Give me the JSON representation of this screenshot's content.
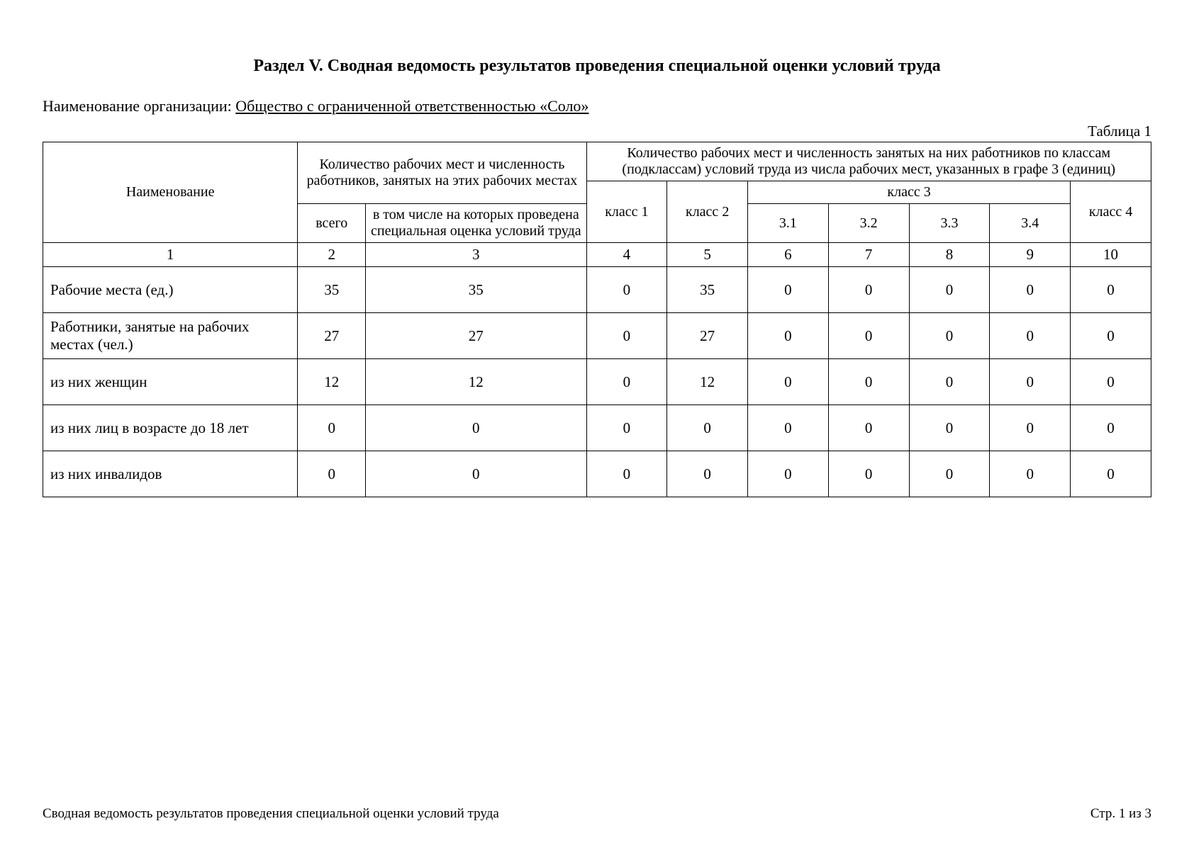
{
  "title": "Раздел V. Сводная ведомость результатов проведения специальной оценки условий труда",
  "org_label": "Наименование организации:",
  "org_name": " Общество с ограниченной ответственностью «Соло» ",
  "table_label": "Таблица 1",
  "headers": {
    "name": "Наименование",
    "count_header": "Количество рабочих мест и численность работников, занятых на этих рабочих местах",
    "classes_header": "Количество рабочих мест и численность занятых на них работников по классам (подклассам) условий труда из числа рабочих мест, указанных в графе 3 (единиц)",
    "total": "всего",
    "assessed": "в том числе на которых проведена специальная оценка условий труда",
    "class1": "класс 1",
    "class2": "класс 2",
    "class3": "класс 3",
    "class4": "класс 4",
    "sub31": "3.1",
    "sub32": "3.2",
    "sub33": "3.3",
    "sub34": "3.4"
  },
  "column_numbers": [
    "1",
    "2",
    "3",
    "4",
    "5",
    "6",
    "7",
    "8",
    "9",
    "10"
  ],
  "rows": [
    {
      "name": "Рабочие места (ед.)",
      "values": [
        "35",
        "35",
        "0",
        "35",
        "0",
        "0",
        "0",
        "0",
        "0"
      ]
    },
    {
      "name": "Работники, занятые на рабочих местах (чел.)",
      "values": [
        "27",
        "27",
        "0",
        "27",
        "0",
        "0",
        "0",
        "0",
        "0"
      ]
    },
    {
      "name": "из них женщин",
      "values": [
        "12",
        "12",
        "0",
        "12",
        "0",
        "0",
        "0",
        "0",
        "0"
      ]
    },
    {
      "name": "из них лиц в возрасте до 18 лет",
      "values": [
        "0",
        "0",
        "0",
        "0",
        "0",
        "0",
        "0",
        "0",
        "0"
      ]
    },
    {
      "name": "из них инвалидов",
      "values": [
        "0",
        "0",
        "0",
        "0",
        "0",
        "0",
        "0",
        "0",
        "0"
      ]
    }
  ],
  "footer_left": "Сводная ведомость результатов проведения специальной оценки условий труда",
  "footer_right": "Стр. 1 из 3",
  "table_style": {
    "type": "table",
    "border_color": "#000000",
    "background_color": "#ffffff",
    "text_color": "#000000",
    "font_family": "Times New Roman",
    "header_fontsize": 20,
    "body_fontsize": 21,
    "column_widths": {
      "name": 300,
      "total": 80,
      "assessed": 260,
      "class_cols": 95
    },
    "data_row_height": 65,
    "num_row_height": 30
  }
}
